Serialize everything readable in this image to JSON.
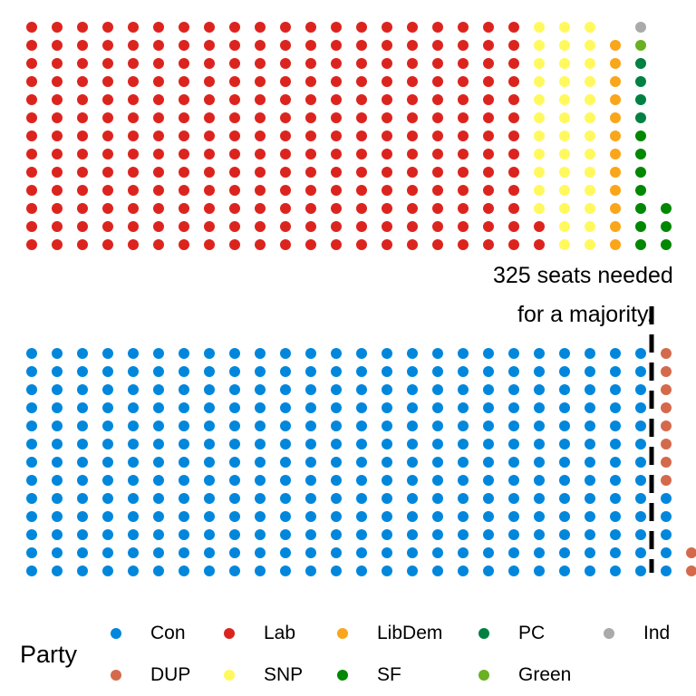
{
  "chart_data": {
    "type": "scatter",
    "subtype": "parliament-waffle",
    "annotation_lines": [
      "325 seats needed",
      "for a majority."
    ],
    "legend": {
      "title": "Party",
      "placement": "bottom",
      "entries": [
        {
          "name": "Con",
          "color": "#0087DC"
        },
        {
          "name": "Lab",
          "color": "#DC241F"
        },
        {
          "name": "LibDem",
          "color": "#FAA61A"
        },
        {
          "name": "PC",
          "color": "#008142"
        },
        {
          "name": "Ind",
          "color": "#AAAAAA"
        },
        {
          "name": "DUP",
          "color": "#D46A4C"
        },
        {
          "name": "SNP",
          "color": "#FFF95D"
        },
        {
          "name": "SF",
          "color": "#008800"
        },
        {
          "name": "Green",
          "color": "#6AB023"
        }
      ]
    },
    "majority_line": true,
    "blocks": {
      "upper": {
        "rows": 13,
        "columns": [
          {
            "party": "Lab",
            "count": 13
          },
          {
            "party": "Lab",
            "count": 13
          },
          {
            "party": "Lab",
            "count": 13
          },
          {
            "party": "Lab",
            "count": 13
          },
          {
            "party": "Lab",
            "count": 13
          },
          {
            "party": "Lab",
            "count": 13
          },
          {
            "party": "Lab",
            "count": 13
          },
          {
            "party": "Lab",
            "count": 13
          },
          {
            "party": "Lab",
            "count": 13
          },
          {
            "party": "Lab",
            "count": 13
          },
          {
            "party": "Lab",
            "count": 13
          },
          {
            "party": "Lab",
            "count": 13
          },
          {
            "party": "Lab",
            "count": 13
          },
          {
            "party": "Lab",
            "count": 13
          },
          {
            "party": "Lab",
            "count": 13
          },
          {
            "party": "Lab",
            "count": 13
          },
          {
            "party": "Lab",
            "count": 13
          },
          {
            "party": "Lab",
            "count": 13
          },
          {
            "party": "Lab",
            "count": 13
          },
          {
            "party": "Lab",
            "count": 13
          },
          {
            "party": "Lab",
            "count": 2,
            "then": {
              "party": "SNP",
              "count": 11
            }
          },
          {
            "party": "SNP",
            "count": 13
          },
          {
            "party": "SNP",
            "count": 13
          },
          {
            "party": "LibDem",
            "count": 12
          },
          {
            "party": "SF",
            "count": 7,
            "then_parties": [
              "PC",
              "PC",
              "PC",
              "PC",
              "Green",
              "Ind"
            ]
          },
          {
            "party": "SF",
            "count": 3
          }
        ]
      },
      "lower": {
        "rows": 13,
        "columns_con_full": 25,
        "col26": {
          "Con": 5,
          "DUP": 8
        },
        "col27": {
          "DUP": 2
        }
      }
    },
    "seat_totals": {
      "Con": 330,
      "Lab": 262,
      "SNP": 37,
      "LibDem": 12,
      "SF": 10,
      "PC": 4,
      "DUP": 10,
      "Green": 1,
      "Ind": 1
    }
  }
}
